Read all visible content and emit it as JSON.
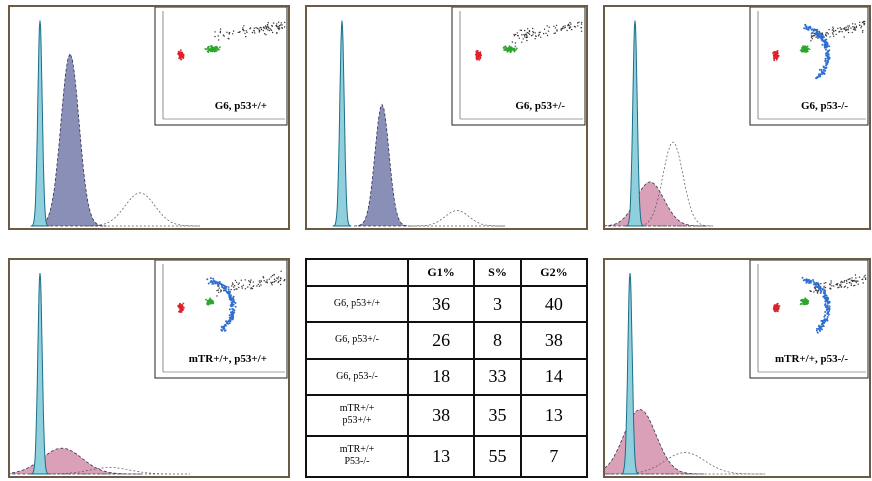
{
  "panels": [
    {
      "label": "G6, p53+/+"
    },
    {
      "label": "G6, p53+/-"
    },
    {
      "label": "G6, p53-/-"
    },
    {
      "label": "mTR+/+, p53+/+"
    },
    {
      "label": "mTR+/+, p53-/-"
    }
  ],
  "table": {
    "header": [
      "G1%",
      "S%",
      "G2%"
    ],
    "rows": [
      [
        "G6, p53+/+",
        "36",
        "3",
        "40"
      ],
      [
        "G6, p53+/-",
        "26",
        "8",
        "38"
      ],
      [
        "G6, p53-/-",
        "18",
        "33",
        "14"
      ],
      [
        "mTR+/+\np53+/+",
        "38",
        "35",
        "13"
      ],
      [
        "mTR+/+\nP53-/-",
        "13",
        "55",
        "7"
      ]
    ]
  }
}
